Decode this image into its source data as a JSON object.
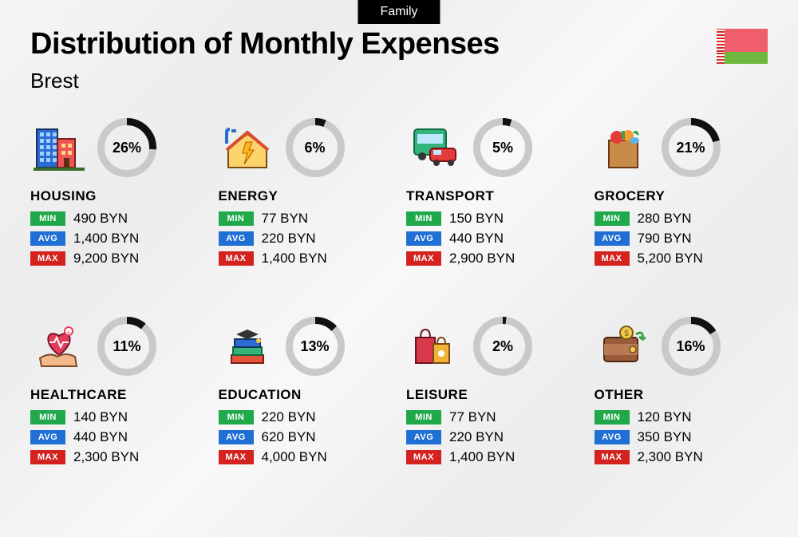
{
  "badge": "Family",
  "title": "Distribution of Monthly Expenses",
  "subtitle": "Brest",
  "flag": {
    "red": "#f05d6c",
    "green": "#6fb83f",
    "ornament": "#d42a2a"
  },
  "colors": {
    "min_bg": "#1fa94a",
    "avg_bg": "#1f6fd4",
    "max_bg": "#d4231f",
    "ring_track": "#c9c9c9",
    "ring_fill": "#111111",
    "text": "#111111"
  },
  "labels": {
    "min": "MIN",
    "avg": "AVG",
    "max": "MAX"
  },
  "ring": {
    "size": 74,
    "stroke_width": 9
  },
  "categories": [
    {
      "key": "housing",
      "name": "HOUSING",
      "pct": 26,
      "min": "490 BYN",
      "avg": "1,400 BYN",
      "max": "9,200 BYN",
      "icon": "buildings"
    },
    {
      "key": "energy",
      "name": "ENERGY",
      "pct": 6,
      "min": "77 BYN",
      "avg": "220 BYN",
      "max": "1,400 BYN",
      "icon": "energy-house"
    },
    {
      "key": "transport",
      "name": "TRANSPORT",
      "pct": 5,
      "min": "150 BYN",
      "avg": "440 BYN",
      "max": "2,900 BYN",
      "icon": "bus-car"
    },
    {
      "key": "grocery",
      "name": "GROCERY",
      "pct": 21,
      "min": "280 BYN",
      "avg": "790 BYN",
      "max": "5,200 BYN",
      "icon": "grocery-bag"
    },
    {
      "key": "healthcare",
      "name": "HEALTHCARE",
      "pct": 11,
      "min": "140 BYN",
      "avg": "440 BYN",
      "max": "2,300 BYN",
      "icon": "heart-hand"
    },
    {
      "key": "education",
      "name": "EDUCATION",
      "pct": 13,
      "min": "220 BYN",
      "avg": "620 BYN",
      "max": "4,000 BYN",
      "icon": "grad-books"
    },
    {
      "key": "leisure",
      "name": "LEISURE",
      "pct": 2,
      "min": "77 BYN",
      "avg": "220 BYN",
      "max": "1,400 BYN",
      "icon": "shopping-bags"
    },
    {
      "key": "other",
      "name": "OTHER",
      "pct": 16,
      "min": "120 BYN",
      "avg": "350 BYN",
      "max": "2,300 BYN",
      "icon": "wallet"
    }
  ]
}
